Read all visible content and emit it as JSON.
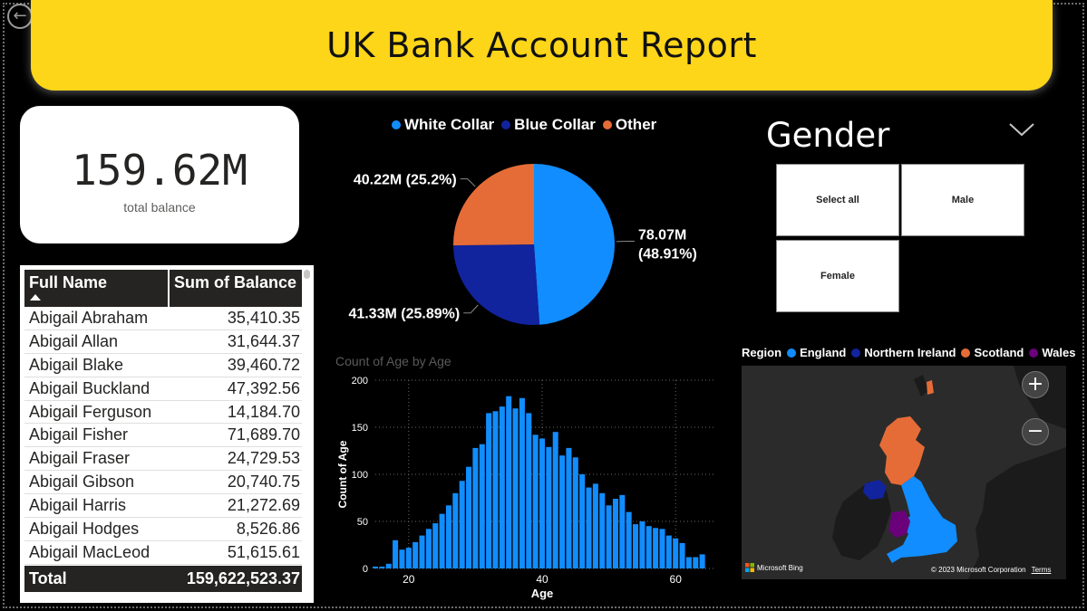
{
  "header": {
    "title": "UK Bank Account Report",
    "back_icon": "back-arrow-icon"
  },
  "kpi": {
    "value": "159.62M",
    "label": "total balance"
  },
  "table": {
    "columns": [
      "Full Name",
      "Sum of Balance"
    ],
    "rows": [
      {
        "name": "Abigail Abraham",
        "balance": "35,410.35"
      },
      {
        "name": "Abigail Allan",
        "balance": "31,644.37"
      },
      {
        "name": "Abigail Blake",
        "balance": "39,460.72"
      },
      {
        "name": "Abigail Buckland",
        "balance": "47,392.56"
      },
      {
        "name": "Abigail Ferguson",
        "balance": "14,184.70"
      },
      {
        "name": "Abigail Fisher",
        "balance": "71,689.70"
      },
      {
        "name": "Abigail Fraser",
        "balance": "24,729.53"
      },
      {
        "name": "Abigail Gibson",
        "balance": "20,740.75"
      },
      {
        "name": "Abigail Harris",
        "balance": "21,272.69"
      },
      {
        "name": "Abigail Hodges",
        "balance": "8,526.86"
      },
      {
        "name": "Abigail MacLeod",
        "balance": "51,615.61"
      }
    ],
    "total_label": "Total",
    "total_value": "159,622,523.37"
  },
  "chart_data": [
    {
      "type": "pie",
      "legend_position": "top",
      "categories": [
        "White Collar",
        "Blue Collar",
        "Other"
      ],
      "values": [
        78.07,
        41.33,
        40.22
      ],
      "units": "M",
      "percent": [
        48.91,
        25.89,
        25.2
      ],
      "colors": [
        "#118dff",
        "#12239e",
        "#e66c37"
      ],
      "data_labels": [
        "78.07M (48.91%)",
        "41.33M (25.89%)",
        "40.22M (25.2%)"
      ]
    },
    {
      "type": "bar",
      "title": "Count of Age by Age",
      "xlabel": "Age",
      "ylabel": "Count of Age",
      "xlim": [
        15,
        65
      ],
      "ylim": [
        0,
        200
      ],
      "x_ticks": [
        20,
        40,
        60
      ],
      "y_ticks": [
        0,
        50,
        100,
        150,
        200
      ],
      "grid": true,
      "color": "#118dff",
      "x": [
        15,
        16,
        17,
        18,
        19,
        20,
        21,
        22,
        23,
        24,
        25,
        26,
        27,
        28,
        29,
        30,
        31,
        32,
        33,
        34,
        35,
        36,
        37,
        38,
        39,
        40,
        41,
        42,
        43,
        44,
        45,
        46,
        47,
        48,
        49,
        50,
        51,
        52,
        53,
        54,
        55,
        56,
        57,
        58,
        59,
        60,
        61,
        62,
        63,
        64
      ],
      "values": [
        2,
        2,
        5,
        30,
        20,
        22,
        28,
        35,
        42,
        48,
        58,
        67,
        80,
        93,
        108,
        128,
        132,
        165,
        167,
        172,
        183,
        170,
        181,
        165,
        142,
        138,
        129,
        145,
        120,
        128,
        118,
        100,
        86,
        90,
        80,
        67,
        74,
        78,
        60,
        47,
        50,
        45,
        43,
        42,
        35,
        32,
        27,
        12,
        12,
        15
      ]
    }
  ],
  "slicer": {
    "title": "Gender",
    "options": [
      "Select all",
      "Male",
      "Female"
    ],
    "chevron_icon": "chevron-down-icon"
  },
  "map": {
    "legend_title": "Region",
    "regions": [
      {
        "name": "England",
        "color": "#118dff"
      },
      {
        "name": "Northern Ireland",
        "color": "#12239e"
      },
      {
        "name": "Scotland",
        "color": "#e66c37"
      },
      {
        "name": "Wales",
        "color": "#6b007b"
      }
    ],
    "zoom_in": "+",
    "zoom_out": "−",
    "attribution": "Microsoft Bing",
    "copyright": "© 2023 Microsoft Corporation",
    "terms": "Terms"
  }
}
